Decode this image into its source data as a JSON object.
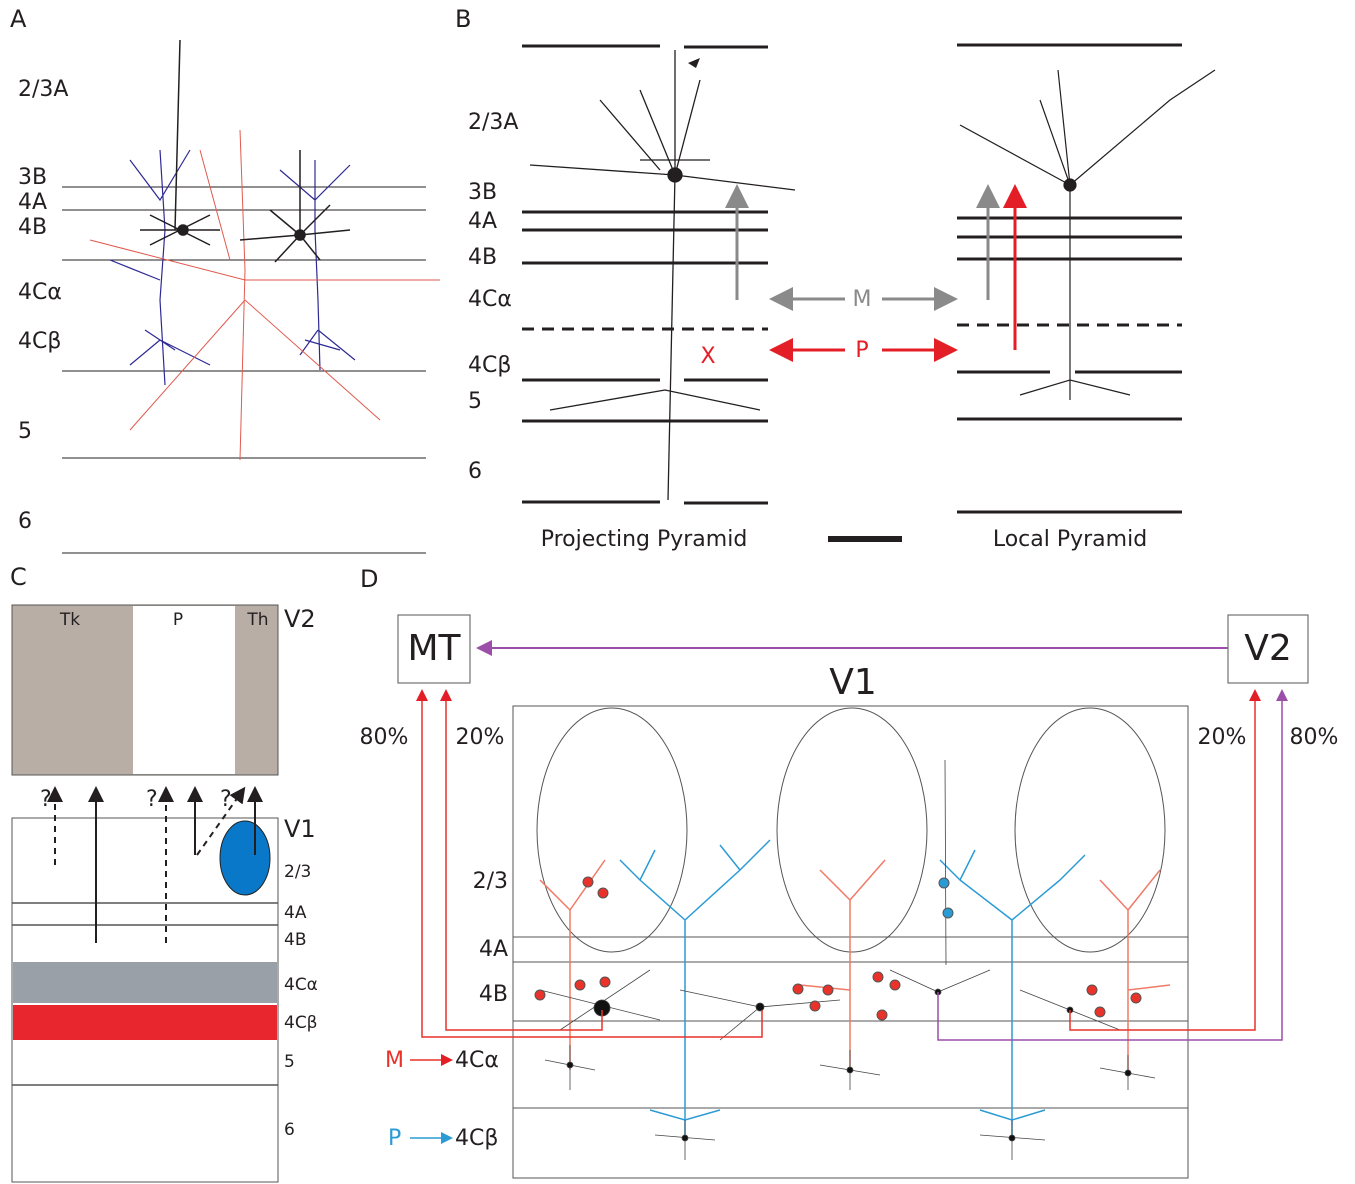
{
  "panels": [
    {
      "label": "A",
      "layers": [
        "2/3A",
        "3B",
        "4A",
        "4B",
        "4Cα",
        "4Cβ",
        "5",
        "6"
      ]
    },
    {
      "label": "B",
      "layers": [
        "2/3A",
        "3B",
        "4A",
        "4B",
        "4Cα",
        "4Cβ",
        "5",
        "6"
      ],
      "arrows": [
        "M",
        "P"
      ],
      "marker": "X",
      "captions": [
        "Projecting Pyramid",
        "Local Pyramid"
      ]
    },
    {
      "label": "C",
      "v2_columns": [
        "Tk",
        "P",
        "Th"
      ],
      "v2": "V2",
      "v1": "V1",
      "questions": [
        "?",
        "?",
        "?"
      ],
      "layers": [
        "2/3",
        "4A",
        "4B",
        "4Cα",
        "4Cβ",
        "5",
        "6"
      ]
    },
    {
      "label": "D",
      "nodes": [
        "MT",
        "V2"
      ],
      "v1": "V1",
      "percentages": [
        "80%",
        "20%",
        "20%",
        "80%"
      ],
      "layers": [
        "2/3",
        "4A",
        "4B"
      ],
      "inputs": [
        {
          "source": "M",
          "target": "4Cα"
        },
        {
          "source": "P",
          "target": "4Cβ"
        }
      ]
    }
  ]
}
